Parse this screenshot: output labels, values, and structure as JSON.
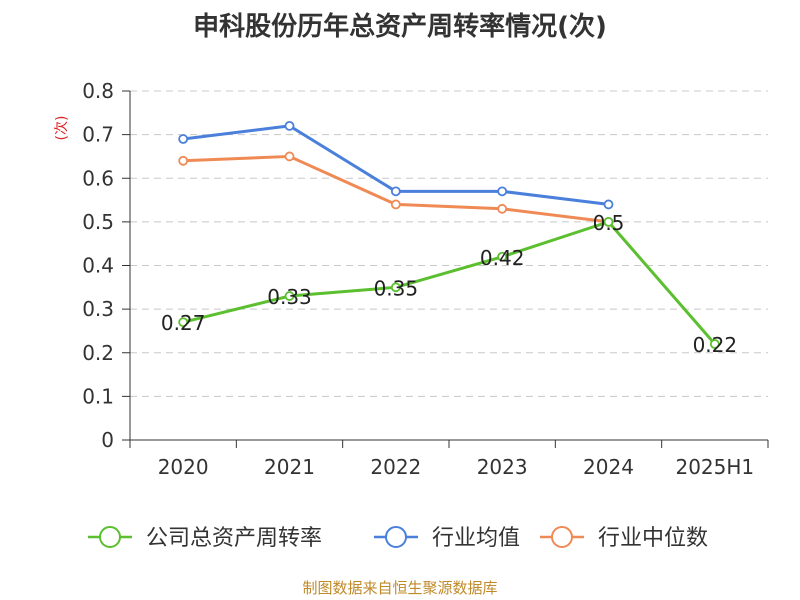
{
  "chart_data": {
    "type": "line",
    "title": "申科股份历年总资产周转率情况(次)",
    "ylabel": "(次)",
    "xlabel": "",
    "ylim": [
      0,
      0.8
    ],
    "yticks": [
      0,
      0.1,
      0.2,
      0.3,
      0.4,
      0.5,
      0.6,
      0.7,
      0.8
    ],
    "categories": [
      "2020",
      "2021",
      "2022",
      "2023",
      "2024",
      "2025H1"
    ],
    "grid": true,
    "legend_position": "bottom",
    "series": [
      {
        "name": "公司总资产周转率",
        "color": "#5bbf2f",
        "values": [
          0.27,
          0.33,
          0.35,
          0.42,
          0.5,
          0.22
        ],
        "labels": [
          "0.27",
          "0.33",
          "0.35",
          "0.42",
          "0.5",
          "0.22"
        ]
      },
      {
        "name": "行业均值",
        "color": "#4a7fdb",
        "values": [
          0.69,
          0.72,
          0.57,
          0.57,
          0.54,
          null
        ]
      },
      {
        "name": "行业中位数",
        "color": "#f08a55",
        "values": [
          0.64,
          0.65,
          0.54,
          0.53,
          0.5,
          null
        ]
      }
    ]
  },
  "source": "制图数据来自恒生聚源数据库"
}
